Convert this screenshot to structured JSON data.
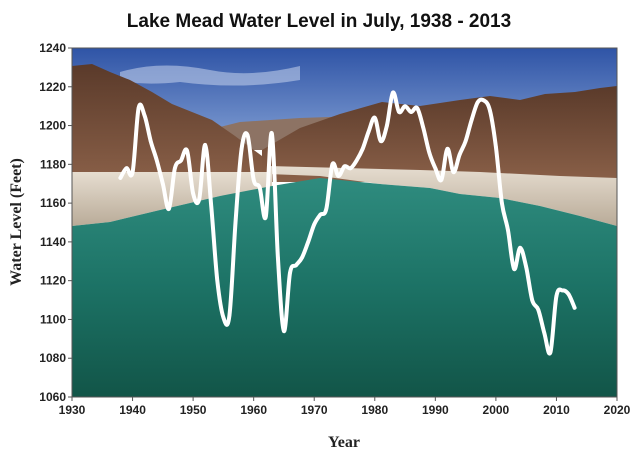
{
  "chart_data": {
    "type": "line",
    "title": "Lake Mead Water Level in July, 1938 - 2013",
    "xlabel": "Year",
    "ylabel": "Water Level (Feet)",
    "xlim": [
      1930,
      2020
    ],
    "ylim": [
      1060,
      1240
    ],
    "x_ticks": [
      1930,
      1940,
      1950,
      1960,
      1970,
      1980,
      1990,
      2000,
      2010,
      2020
    ],
    "y_ticks": [
      1060,
      1080,
      1100,
      1120,
      1140,
      1160,
      1180,
      1200,
      1220,
      1240
    ],
    "grid": false,
    "background": "photograph of Lake Mead reservoir (canyon walls, sky, green water)",
    "line_color": "#ffffff",
    "series": [
      {
        "name": "Water Level",
        "x": [
          1938,
          1939,
          1940,
          1941,
          1942,
          1943,
          1944,
          1945,
          1946,
          1947,
          1948,
          1949,
          1950,
          1951,
          1952,
          1953,
          1954,
          1955,
          1956,
          1957,
          1958,
          1959,
          1960,
          1961,
          1962,
          1963,
          1964,
          1965,
          1966,
          1967,
          1968,
          1969,
          1970,
          1971,
          1972,
          1973,
          1974,
          1975,
          1976,
          1977,
          1978,
          1979,
          1980,
          1981,
          1982,
          1983,
          1984,
          1985,
          1986,
          1987,
          1988,
          1989,
          1990,
          1991,
          1992,
          1993,
          1994,
          1995,
          1996,
          1997,
          1998,
          1999,
          2000,
          2001,
          2002,
          2003,
          2004,
          2005,
          2006,
          2007,
          2008,
          2009,
          2010,
          2011,
          2012,
          2013
        ],
        "values": [
          1173,
          1178,
          1176,
          1209,
          1205,
          1192,
          1182,
          1170,
          1157,
          1178,
          1182,
          1187,
          1165,
          1162,
          1190,
          1158,
          1120,
          1101,
          1102,
          1150,
          1188,
          1195,
          1172,
          1168,
          1153,
          1196,
          1132,
          1094,
          1124,
          1128,
          1132,
          1140,
          1149,
          1154,
          1157,
          1180,
          1174,
          1179,
          1178,
          1182,
          1188,
          1197,
          1204,
          1192,
          1200,
          1217,
          1207,
          1210,
          1207,
          1209,
          1199,
          1186,
          1178,
          1172,
          1188,
          1176,
          1185,
          1192,
          1203,
          1212,
          1213,
          1208,
          1189,
          1160,
          1146,
          1126,
          1137,
          1127,
          1110,
          1105,
          1093,
          1083,
          1112,
          1115,
          1113,
          1106
        ]
      }
    ]
  }
}
